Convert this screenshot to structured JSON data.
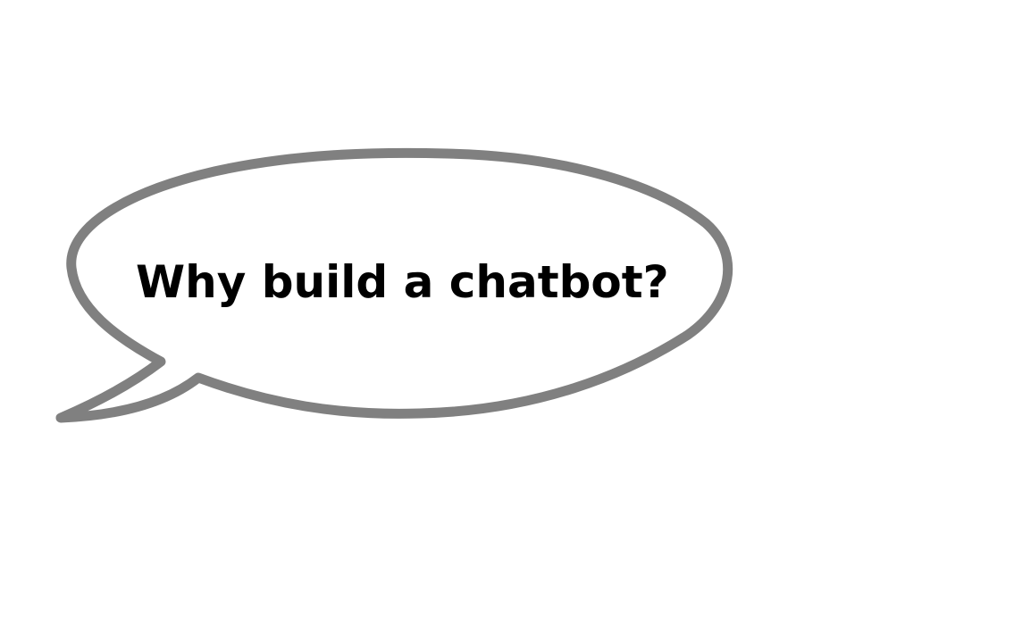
{
  "speech_bubble": {
    "text": "Why build a chatbot?",
    "outline_color": "#808080",
    "fill_color": "#ffffff",
    "text_color": "#000000"
  }
}
